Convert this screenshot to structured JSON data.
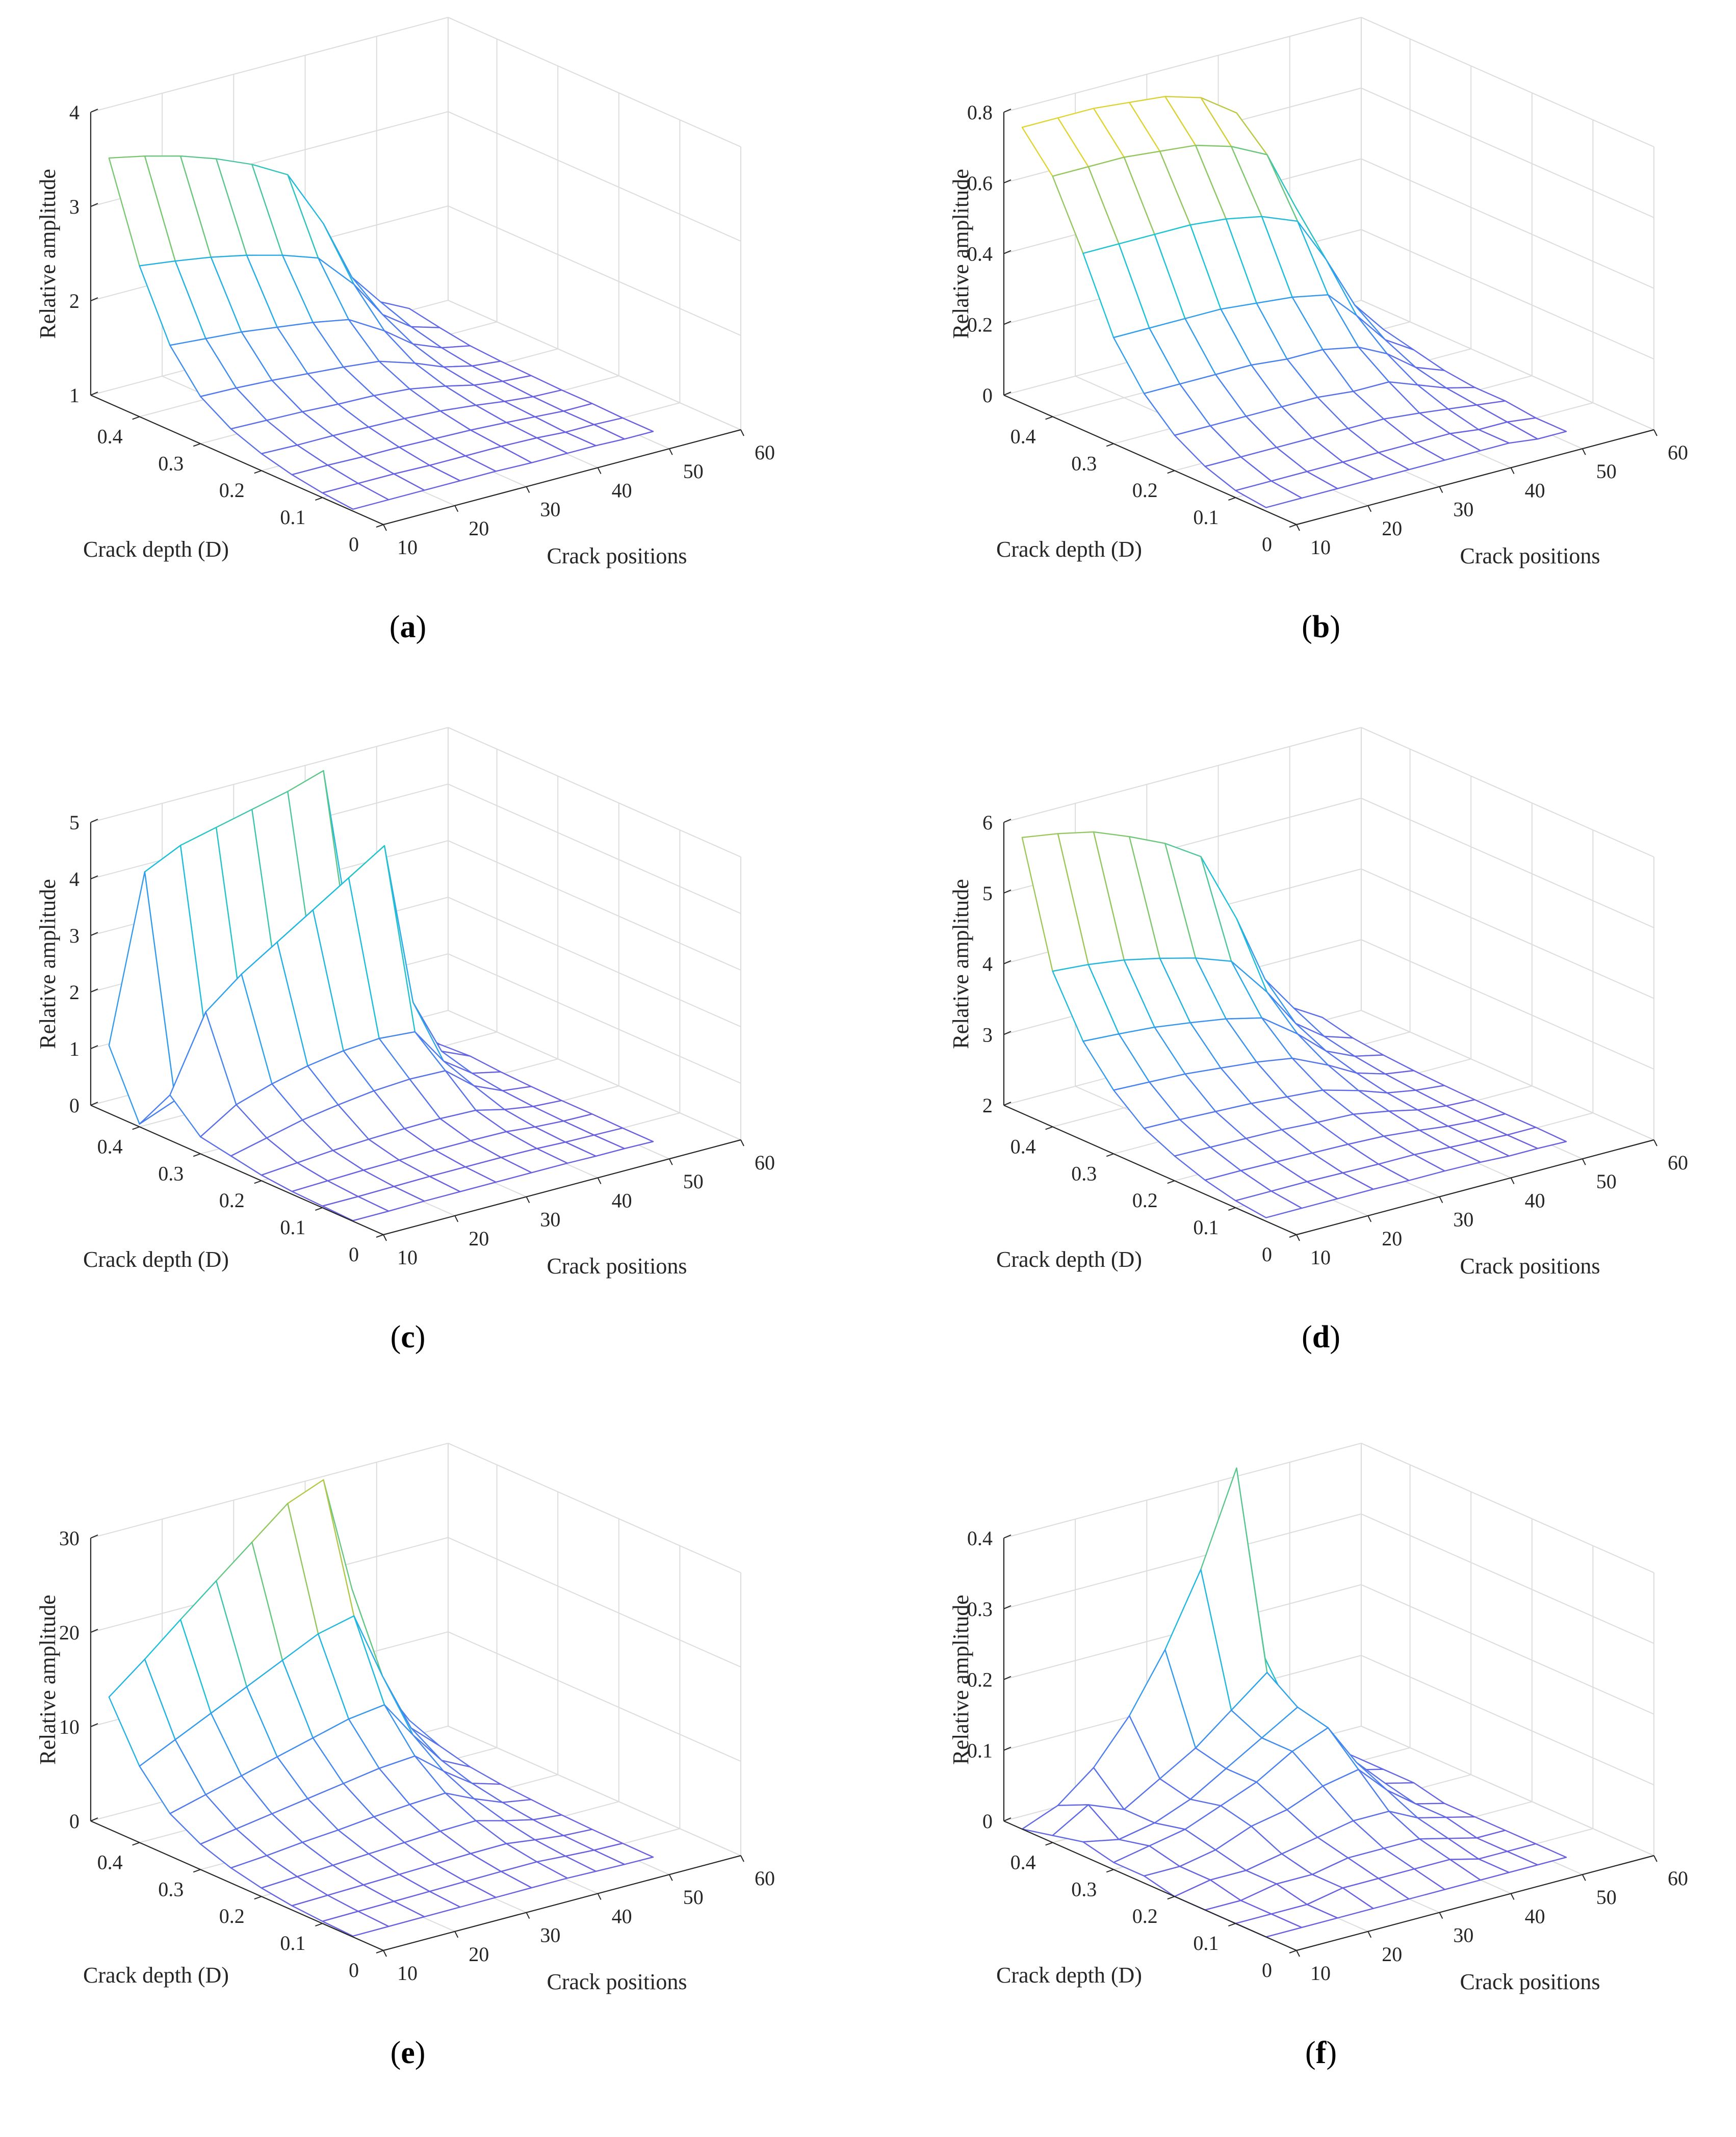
{
  "colors": {
    "grid": "#dcdcdc",
    "axis": "#262626",
    "colormap": [
      "#6a5fe0",
      "#4a7ff0",
      "#2aa6ec",
      "#1ac3d6",
      "#6cc77a",
      "#c9c83a",
      "#f9e227"
    ]
  },
  "chart_data": [
    {
      "caption": "a",
      "type": "surface",
      "xlabel": "Crack positions",
      "ylabel": "Crack depth (D)",
      "zlabel": "Relative amplitude",
      "xlim": [
        10,
        60
      ],
      "ylim": [
        0,
        0.48
      ],
      "zlim": [
        1,
        4
      ],
      "xticks": [
        10,
        20,
        30,
        40,
        50,
        60
      ],
      "yticks": [
        0,
        0.1,
        0.2,
        0.3,
        0.4
      ],
      "zticks": [
        1,
        2,
        3,
        4
      ],
      "positions": [
        10,
        15,
        20,
        25,
        30,
        35,
        40,
        44,
        48,
        52
      ],
      "depths": [
        0.05,
        0.1,
        0.15,
        0.2,
        0.25,
        0.3,
        0.35,
        0.4,
        0.45
      ],
      "z": [
        [
          1.02,
          1.02,
          1.02,
          1.02,
          1.02,
          1.01,
          1.01,
          1.01,
          1.0,
          1.0
        ],
        [
          1.05,
          1.05,
          1.05,
          1.04,
          1.04,
          1.04,
          1.03,
          1.01,
          1.01,
          1.0
        ],
        [
          1.1,
          1.1,
          1.09,
          1.09,
          1.08,
          1.07,
          1.05,
          1.03,
          1.01,
          1.01
        ],
        [
          1.18,
          1.17,
          1.17,
          1.16,
          1.15,
          1.13,
          1.09,
          1.05,
          1.02,
          1.01
        ],
        [
          1.3,
          1.29,
          1.28,
          1.26,
          1.25,
          1.22,
          1.15,
          1.08,
          1.04,
          1.02
        ],
        [
          1.5,
          1.49,
          1.47,
          1.44,
          1.41,
          1.37,
          1.25,
          1.13,
          1.06,
          1.03
        ],
        [
          1.9,
          1.87,
          1.84,
          1.79,
          1.74,
          1.67,
          1.45,
          1.23,
          1.11,
          1.05
        ],
        [
          2.6,
          2.55,
          2.49,
          2.41,
          2.31,
          2.18,
          1.8,
          1.4,
          1.19,
          1.1
        ],
        [
          3.6,
          3.52,
          3.42,
          3.29,
          3.13,
          2.92,
          2.3,
          1.65,
          1.31,
          1.16
        ]
      ]
    },
    {
      "caption": "b",
      "type": "surface",
      "xlabel": "Crack positions",
      "ylabel": "Crack depth (D)",
      "zlabel": "Relative amplitude",
      "xlim": [
        10,
        60
      ],
      "ylim": [
        0,
        0.48
      ],
      "zlim": [
        0,
        0.8
      ],
      "xticks": [
        10,
        20,
        30,
        40,
        50,
        60
      ],
      "yticks": [
        0,
        0.1,
        0.2,
        0.3,
        0.4
      ],
      "zticks": [
        0,
        0.2,
        0.4,
        0.6,
        0.8
      ],
      "positions": [
        10,
        15,
        20,
        25,
        30,
        35,
        40,
        44,
        48,
        52
      ],
      "depths": [
        0.05,
        0.1,
        0.15,
        0.2,
        0.25,
        0.3,
        0.35,
        0.4,
        0.45
      ],
      "z": [
        [
          0.01,
          0.01,
          0.01,
          0.01,
          0.01,
          0.01,
          0.01,
          0.01,
          0.0,
          0.0
        ],
        [
          0.02,
          0.02,
          0.02,
          0.02,
          0.02,
          0.02,
          0.02,
          0.01,
          0.01,
          0.0
        ],
        [
          0.05,
          0.05,
          0.05,
          0.05,
          0.05,
          0.05,
          0.04,
          0.03,
          0.02,
          0.01
        ],
        [
          0.1,
          0.1,
          0.1,
          0.1,
          0.1,
          0.09,
          0.09,
          0.06,
          0.03,
          0.01
        ],
        [
          0.18,
          0.18,
          0.18,
          0.18,
          0.17,
          0.17,
          0.15,
          0.11,
          0.05,
          0.02
        ],
        [
          0.3,
          0.3,
          0.3,
          0.3,
          0.29,
          0.28,
          0.26,
          0.18,
          0.09,
          0.04
        ],
        [
          0.5,
          0.5,
          0.5,
          0.5,
          0.49,
          0.47,
          0.43,
          0.3,
          0.15,
          0.06
        ],
        [
          0.68,
          0.68,
          0.68,
          0.67,
          0.66,
          0.63,
          0.58,
          0.41,
          0.2,
          0.08
        ],
        [
          0.78,
          0.78,
          0.78,
          0.77,
          0.76,
          0.73,
          0.66,
          0.47,
          0.23,
          0.09
        ]
      ]
    },
    {
      "caption": "c",
      "type": "surface",
      "xlabel": "Crack positions",
      "ylabel": "Crack depth (D)",
      "zlabel": "Relative amplitude",
      "xlim": [
        10,
        60
      ],
      "ylim": [
        0,
        0.48
      ],
      "zlim": [
        0,
        5
      ],
      "xticks": [
        10,
        20,
        30,
        40,
        50,
        60
      ],
      "yticks": [
        0,
        0.1,
        0.2,
        0.3,
        0.4
      ],
      "zticks": [
        0,
        1,
        2,
        3,
        4,
        5
      ],
      "positions": [
        10,
        15,
        20,
        25,
        30,
        35,
        40,
        44,
        48,
        52
      ],
      "depths": [
        0.05,
        0.1,
        0.15,
        0.2,
        0.25,
        0.3,
        0.35,
        0.4,
        0.45
      ],
      "z": [
        [
          0.01,
          0.01,
          0.02,
          0.02,
          0.02,
          0.02,
          0.02,
          0.01,
          0.01,
          0.0
        ],
        [
          0.03,
          0.03,
          0.04,
          0.05,
          0.05,
          0.05,
          0.04,
          0.02,
          0.01,
          0.0
        ],
        [
          0.05,
          0.07,
          0.09,
          0.1,
          0.11,
          0.11,
          0.1,
          0.05,
          0.02,
          0.01
        ],
        [
          0.1,
          0.15,
          0.2,
          0.23,
          0.25,
          0.26,
          0.24,
          0.12,
          0.04,
          0.01
        ],
        [
          0.2,
          0.35,
          0.5,
          0.6,
          0.68,
          0.72,
          0.7,
          0.3,
          0.08,
          0.02
        ],
        [
          0.3,
          0.7,
          0.9,
          1.05,
          1.15,
          1.2,
          1.15,
          0.5,
          0.15,
          0.04
        ],
        [
          0.8,
          2.1,
          2.6,
          3.0,
          3.4,
          3.8,
          4.2,
          1.3,
          0.3,
          0.08
        ],
        [
          0.05,
          0.3,
          0.6,
          0.9,
          1.2,
          1.4,
          1.5,
          0.6,
          0.15,
          0.05
        ],
        [
          1.2,
          4.1,
          4.4,
          4.55,
          4.7,
          4.85,
          5.05,
          1.8,
          0.3,
          0.1
        ]
      ]
    },
    {
      "caption": "d",
      "type": "surface",
      "xlabel": "Crack positions",
      "ylabel": "Crack depth (D)",
      "zlabel": "Relative amplitude",
      "xlim": [
        10,
        60
      ],
      "ylim": [
        0,
        0.48
      ],
      "zlim": [
        2,
        6
      ],
      "xticks": [
        10,
        20,
        30,
        40,
        50,
        60
      ],
      "yticks": [
        0,
        0.1,
        0.2,
        0.3,
        0.4
      ],
      "zticks": [
        2,
        3,
        4,
        5,
        6
      ],
      "positions": [
        10,
        15,
        20,
        25,
        30,
        35,
        40,
        44,
        48,
        52
      ],
      "depths": [
        0.05,
        0.1,
        0.15,
        0.2,
        0.25,
        0.3,
        0.35,
        0.4,
        0.45
      ],
      "z": [
        [
          2.05,
          2.05,
          2.05,
          2.05,
          2.04,
          2.04,
          2.03,
          2.01,
          2.01,
          2.0
        ],
        [
          2.1,
          2.1,
          2.1,
          2.09,
          2.08,
          2.08,
          2.05,
          2.03,
          2.01,
          2.01
        ],
        [
          2.2,
          2.2,
          2.19,
          2.18,
          2.17,
          2.15,
          2.1,
          2.05,
          2.02,
          2.01
        ],
        [
          2.35,
          2.34,
          2.33,
          2.32,
          2.29,
          2.27,
          2.18,
          2.09,
          2.04,
          2.02
        ],
        [
          2.55,
          2.54,
          2.52,
          2.5,
          2.46,
          2.42,
          2.28,
          2.14,
          2.07,
          2.03
        ],
        [
          2.9,
          2.88,
          2.86,
          2.81,
          2.76,
          2.68,
          2.45,
          2.23,
          2.11,
          2.05
        ],
        [
          3.4,
          3.37,
          3.33,
          3.26,
          3.18,
          3.06,
          2.7,
          2.35,
          2.17,
          2.08
        ],
        [
          4.2,
          4.16,
          4.09,
          3.98,
          3.85,
          3.67,
          3.1,
          2.55,
          2.26,
          2.13
        ],
        [
          5.9,
          5.82,
          5.71,
          5.51,
          5.28,
          4.96,
          3.95,
          2.98,
          2.47,
          2.23
        ]
      ]
    },
    {
      "caption": "e",
      "type": "surface",
      "xlabel": "Crack positions",
      "ylabel": "Crack depth (D)",
      "zlabel": "Relative amplitude",
      "xlim": [
        10,
        60
      ],
      "ylim": [
        0,
        0.48
      ],
      "zlim": [
        0,
        30
      ],
      "xticks": [
        10,
        20,
        30,
        40,
        50,
        60
      ],
      "yticks": [
        0,
        0.1,
        0.2,
        0.3,
        0.4
      ],
      "zticks": [
        0,
        10,
        20,
        30
      ],
      "positions": [
        10,
        15,
        20,
        25,
        30,
        35,
        40,
        44,
        48,
        52
      ],
      "depths": [
        0.05,
        0.1,
        0.15,
        0.2,
        0.25,
        0.3,
        0.35,
        0.4,
        0.45
      ],
      "z": [
        [
          0.09,
          0.11,
          0.13,
          0.15,
          0.17,
          0.19,
          0.2,
          0.12,
          0.05,
          0.02
        ],
        [
          0.23,
          0.28,
          0.33,
          0.38,
          0.43,
          0.48,
          0.5,
          0.3,
          0.13,
          0.05
        ],
        [
          0.45,
          0.55,
          0.65,
          0.75,
          0.85,
          0.95,
          1.0,
          0.6,
          0.25,
          0.1
        ],
        [
          0.9,
          1.1,
          1.3,
          1.5,
          1.7,
          1.9,
          2.0,
          1.2,
          0.5,
          0.2
        ],
        [
          1.6,
          1.9,
          2.3,
          2.6,
          3.0,
          3.3,
          3.5,
          2.1,
          0.9,
          0.4
        ],
        [
          2.7,
          3.3,
          3.9,
          4.5,
          5.1,
          5.7,
          6.0,
          3.6,
          1.5,
          0.6
        ],
        [
          4.5,
          5.5,
          6.5,
          7.5,
          8.5,
          9.5,
          10.0,
          6.0,
          2.5,
          1.0
        ],
        [
          8.1,
          9.9,
          11.7,
          13.5,
          15.3,
          17.1,
          18.0,
          10.8,
          4.5,
          1.8
        ],
        [
          14.0,
          17.0,
          20.2,
          23.3,
          26.4,
          29.5,
          31.0,
          18.6,
          7.8,
          3.1
        ]
      ]
    },
    {
      "caption": "f",
      "type": "surface",
      "xlabel": "Crack positions",
      "ylabel": "Crack depth (D)",
      "zlabel": "Relative amplitude",
      "xlim": [
        10,
        60
      ],
      "ylim": [
        0,
        0.48
      ],
      "zlim": [
        0,
        0.4
      ],
      "xticks": [
        10,
        20,
        30,
        40,
        50,
        60
      ],
      "yticks": [
        0,
        0.1,
        0.2,
        0.3,
        0.4
      ],
      "zticks": [
        0,
        0.1,
        0.2,
        0.3,
        0.4
      ],
      "positions": [
        10,
        15,
        20,
        25,
        30,
        35,
        40,
        44,
        48,
        52
      ],
      "depths": [
        0.05,
        0.1,
        0.15,
        0.2,
        0.25,
        0.3,
        0.35,
        0.4,
        0.45
      ],
      "z": [
        [
          0.0,
          0.0,
          0.0,
          0.0,
          0.0,
          0.0,
          0.0,
          0.0,
          0.0,
          0.0
        ],
        [
          0.0,
          0.0,
          0.0,
          0.01,
          0.01,
          0.01,
          0.01,
          0.0,
          0.0,
          0.0
        ],
        [
          0.0,
          0.0,
          0.01,
          0.01,
          0.02,
          0.02,
          0.02,
          0.01,
          0.0,
          0.0
        ],
        [
          0.0,
          0.01,
          0.01,
          0.02,
          0.03,
          0.04,
          0.04,
          0.02,
          0.01,
          0.0
        ],
        [
          0.01,
          0.01,
          0.02,
          0.04,
          0.05,
          0.07,
          0.08,
          0.04,
          0.01,
          0.0
        ],
        [
          0.01,
          0.02,
          0.03,
          0.05,
          0.07,
          0.1,
          0.12,
          0.06,
          0.02,
          0.01
        ],
        [
          0.02,
          0.01,
          0.02,
          0.04,
          0.07,
          0.1,
          0.13,
          0.07,
          0.02,
          0.01
        ],
        [
          0.01,
          0.04,
          0.02,
          0.05,
          0.08,
          0.12,
          0.16,
          0.08,
          0.03,
          0.01
        ],
        [
          0.0,
          0.02,
          0.06,
          0.12,
          0.2,
          0.3,
          0.43,
          0.15,
          0.04,
          0.01
        ]
      ]
    }
  ]
}
